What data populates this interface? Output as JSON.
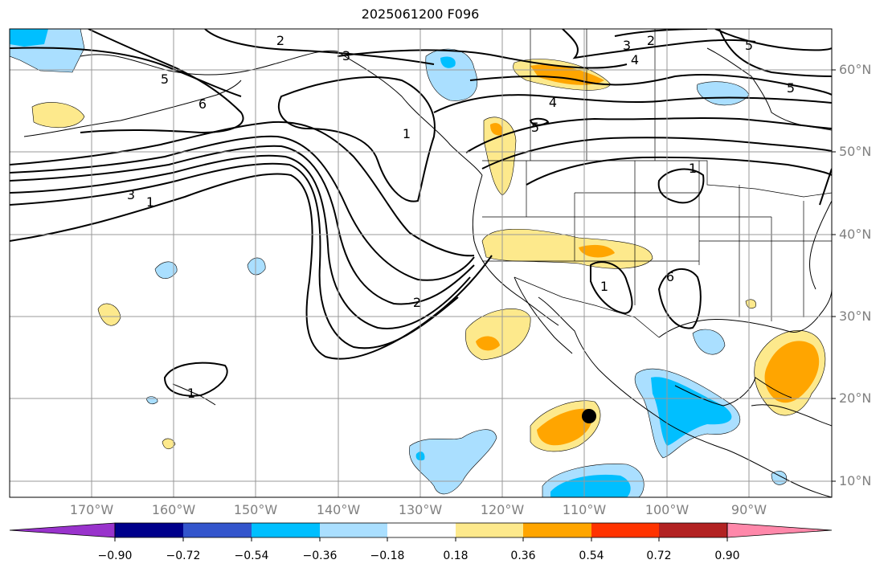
{
  "title": "2025061200 F096",
  "longitude_labels": [
    "170°W",
    "160°W",
    "150°W",
    "140°W",
    "130°W",
    "120°W",
    "110°W",
    "100°W",
    "90°W"
  ],
  "latitude_labels": [
    "60°N",
    "50°N",
    "40°N",
    "30°N",
    "20°N",
    "10°N"
  ],
  "contour_labels": [
    "2",
    "3",
    "3",
    "2",
    "4",
    "5",
    "6",
    "5",
    "4",
    "5",
    "3",
    "1",
    "2",
    "1",
    "1",
    "1",
    "1",
    "5",
    "6"
  ],
  "colorbar": {
    "tick_labels": [
      "−0.90",
      "−0.72",
      "−0.54",
      "−0.36",
      "−0.18",
      "0.18",
      "0.36",
      "0.54",
      "0.72",
      "0.90"
    ],
    "colors": [
      "#9933cc",
      "#00008b",
      "#3355cc",
      "#00bfff",
      "#aadfff",
      "#ffffff",
      "#fde98c",
      "#ffa500",
      "#ff3300",
      "#b22222",
      "#ff88aa"
    ]
  },
  "colors": {
    "pos_light": "#fde98c",
    "pos_mid": "#ffa500",
    "neg_light": "#aadfff",
    "neg_mid": "#00bfff",
    "contour": "#000000",
    "grid": "#999999"
  },
  "marker": "black-dot"
}
